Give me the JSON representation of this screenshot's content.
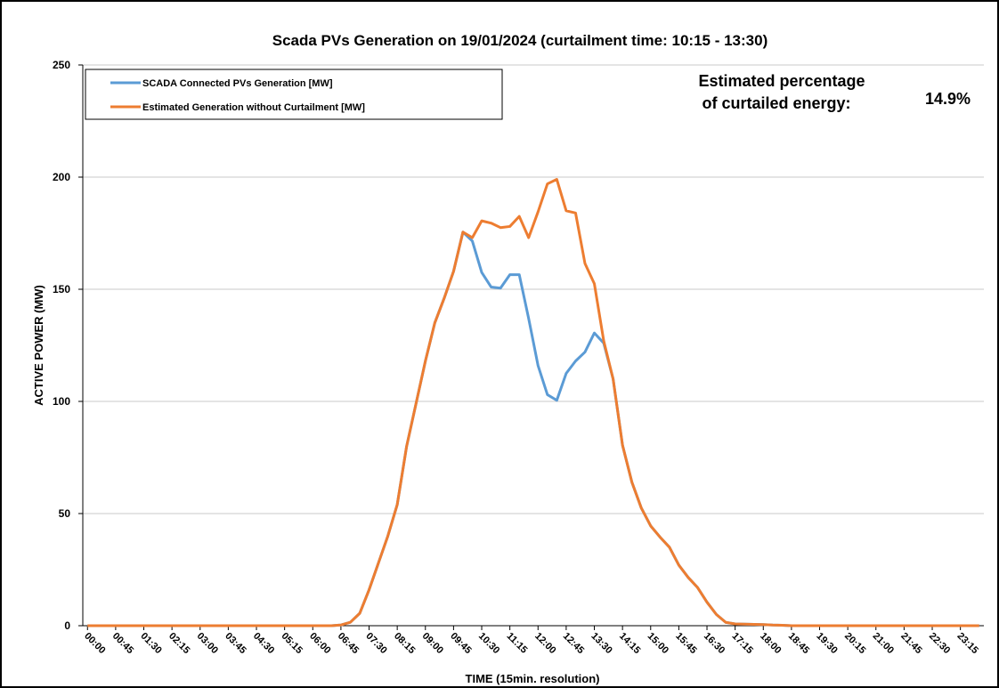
{
  "chart_data": {
    "type": "line",
    "title": "Scada PVs Generation on 19/01/2024 (curtailment time: 10:15 - 13:30)",
    "x_label": "TIME (15min. resolution)",
    "y_label": "ACTIVE POWER (MW)",
    "annotation": {
      "label": [
        "Estimated percentage",
        "of curtailed energy:"
      ],
      "value": "14.9%"
    },
    "categories": [
      "00:00",
      null,
      null,
      "00:45",
      null,
      null,
      "01:30",
      null,
      null,
      "02:15",
      null,
      null,
      "03:00",
      null,
      null,
      "03:45",
      null,
      null,
      "04:30",
      null,
      null,
      "05:15",
      null,
      null,
      "06:00",
      null,
      null,
      "06:45",
      null,
      null,
      "07:30",
      null,
      null,
      "08:15",
      null,
      null,
      "09:00",
      null,
      null,
      "09:45",
      null,
      null,
      "10:30",
      null,
      null,
      "11:15",
      null,
      null,
      "12:00",
      null,
      null,
      "12:45",
      null,
      null,
      "13:30",
      null,
      null,
      "14:15",
      null,
      null,
      "15:00",
      null,
      null,
      "15:45",
      null,
      null,
      "16:30",
      null,
      null,
      "17:15",
      null,
      null,
      "18:00",
      null,
      null,
      "18:45",
      null,
      null,
      "19:30",
      null,
      null,
      "20:15",
      null,
      null,
      "21:00",
      null,
      null,
      "21:45",
      null,
      null,
      "22:30",
      null,
      null,
      "23:15",
      null,
      null
    ],
    "series": [
      {
        "name": "SCADA Connected PVs Generation [MW]",
        "color": "#5b9bd5",
        "values": [
          0,
          0,
          0,
          0,
          0,
          0,
          0,
          0,
          0,
          0,
          0,
          0,
          0,
          0,
          0,
          0,
          0,
          0,
          0,
          0,
          0,
          0,
          0,
          0,
          0,
          0,
          0,
          0.3,
          1.5,
          5.5,
          16,
          28,
          40,
          54,
          80,
          99,
          118,
          135,
          146,
          158,
          175.5,
          171.5,
          157.5,
          151,
          150.5,
          156.5,
          156.5,
          137,
          116,
          103,
          100.5,
          112.5,
          118,
          122,
          130.5,
          126,
          110,
          80.5,
          64,
          52.5,
          44.5,
          39.5,
          35,
          27,
          21.5,
          17,
          10.5,
          5,
          1.5,
          0.8,
          0.7,
          0.6,
          0.5,
          0.3,
          0.2,
          0,
          0,
          0,
          0,
          0,
          0,
          0,
          0,
          0,
          0,
          0,
          0,
          0,
          0,
          0,
          0,
          0,
          0,
          0,
          0,
          0
        ]
      },
      {
        "name": "Estimated Generation without Curtailment [MW]",
        "color": "#ed7d31",
        "values": [
          0,
          0,
          0,
          0,
          0,
          0,
          0,
          0,
          0,
          0,
          0,
          0,
          0,
          0,
          0,
          0,
          0,
          0,
          0,
          0,
          0,
          0,
          0,
          0,
          0,
          0,
          0,
          0.3,
          1.5,
          5.5,
          16,
          28,
          40,
          54,
          80,
          99,
          118,
          135,
          146,
          158,
          175.5,
          173,
          180.5,
          179.5,
          177.5,
          178,
          182.5,
          173,
          184.5,
          197,
          199,
          185,
          184,
          161.5,
          152.5,
          127,
          110,
          80.5,
          64,
          52.5,
          44.5,
          39.5,
          35,
          27,
          21.5,
          17,
          10.5,
          5,
          1.5,
          0.8,
          0.7,
          0.6,
          0.5,
          0.3,
          0.2,
          0,
          0,
          0,
          0,
          0,
          0,
          0,
          0,
          0,
          0,
          0,
          0,
          0,
          0,
          0,
          0,
          0,
          0,
          0,
          0,
          0
        ]
      }
    ],
    "ylim": [
      0,
      250
    ],
    "yticks": [
      0,
      50,
      100,
      150,
      200,
      250
    ],
    "grid": true
  }
}
